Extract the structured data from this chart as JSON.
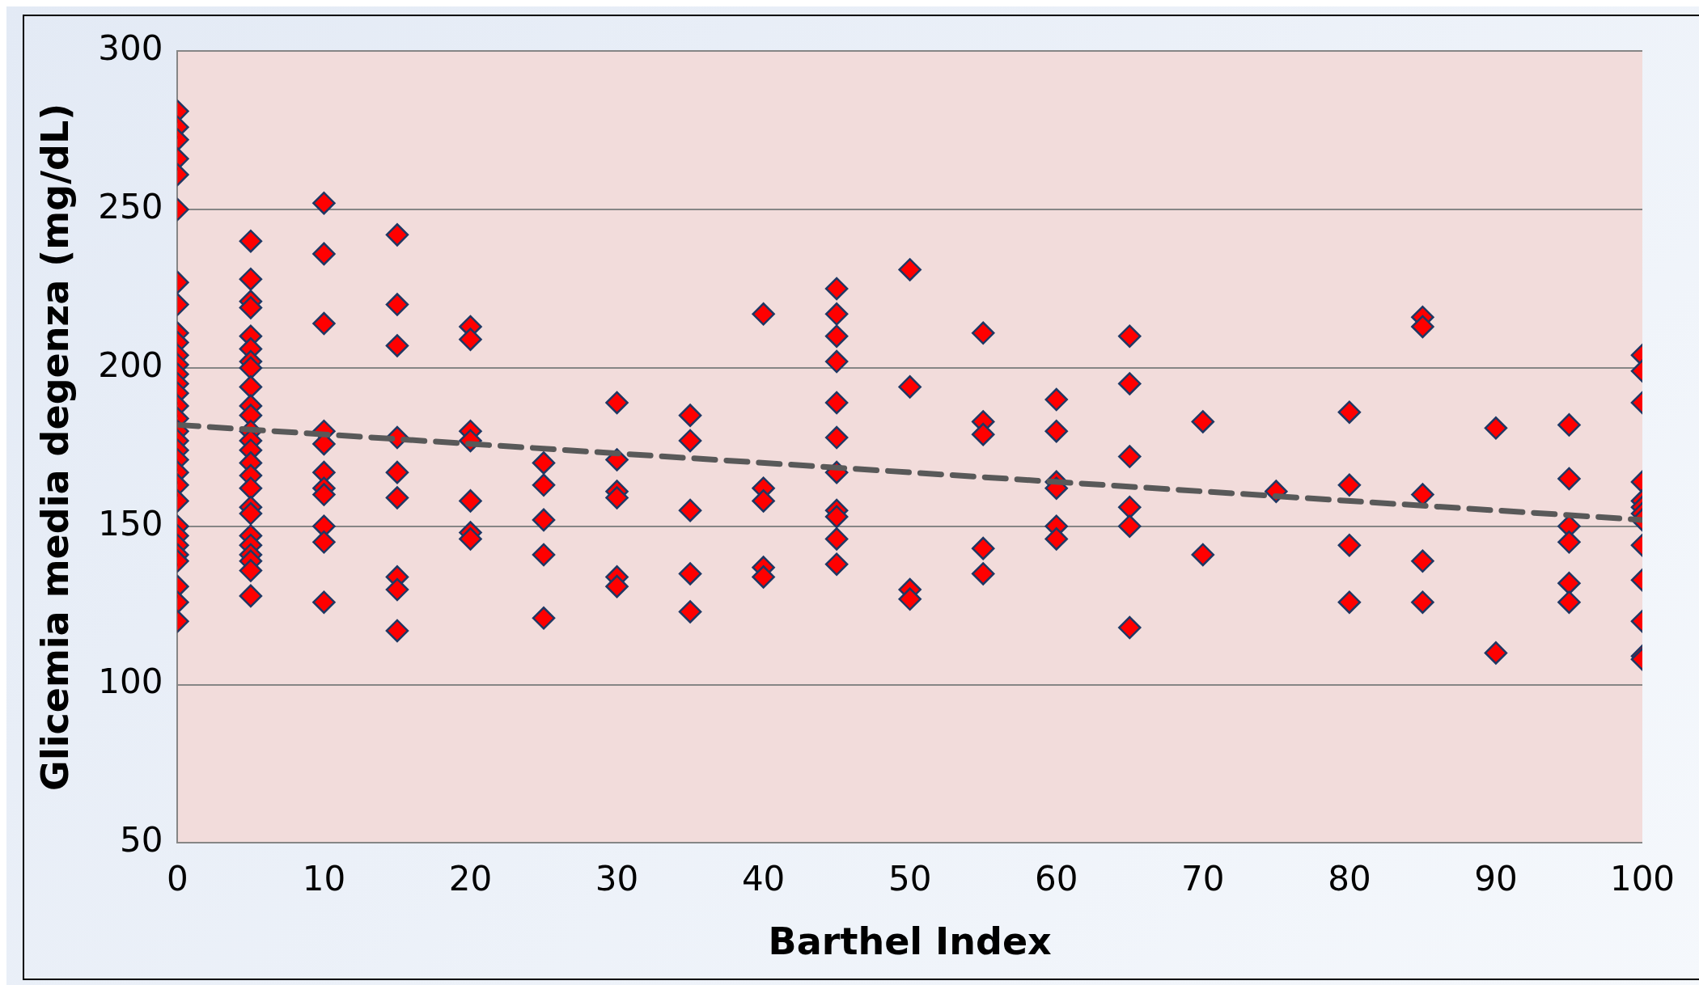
{
  "chart_data": {
    "type": "scatter",
    "xlabel": "Barthel Index",
    "ylabel": "Glicemia media degenza (mg/dL)",
    "xlim": [
      0,
      100
    ],
    "xticks": [
      0,
      10,
      20,
      30,
      40,
      50,
      60,
      70,
      80,
      90,
      100
    ],
    "ylim": [
      50,
      300
    ],
    "yticks": [
      50,
      100,
      150,
      200,
      250,
      300
    ],
    "grid": "y",
    "legend": false,
    "marker": "diamond",
    "series": [
      {
        "color": "#ff0000",
        "x": [
          0,
          0,
          0,
          0,
          0,
          0,
          0,
          0,
          0,
          0,
          0,
          0,
          0,
          0,
          0,
          0,
          0,
          0,
          0,
          0,
          0,
          0,
          0,
          0,
          0,
          0,
          0,
          0,
          0,
          0,
          0,
          0,
          5,
          5,
          5,
          5,
          5,
          5,
          5,
          5,
          5,
          5,
          5,
          5,
          5,
          5,
          5,
          5,
          5,
          5,
          5,
          5,
          5,
          5,
          5,
          5,
          5,
          10,
          10,
          10,
          10,
          10,
          10,
          10,
          10,
          10,
          10,
          10,
          15,
          15,
          15,
          15,
          15,
          15,
          15,
          15,
          15,
          20,
          20,
          20,
          20,
          20,
          20,
          20,
          25,
          25,
          25,
          25,
          25,
          30,
          30,
          30,
          30,
          30,
          30,
          35,
          35,
          35,
          35,
          35,
          40,
          40,
          40,
          40,
          40,
          45,
          45,
          45,
          45,
          45,
          45,
          45,
          45,
          45,
          45,
          45,
          50,
          50,
          50,
          50,
          55,
          55,
          55,
          55,
          55,
          60,
          60,
          60,
          60,
          60,
          60,
          65,
          65,
          65,
          65,
          65,
          65,
          70,
          70,
          75,
          80,
          80,
          80,
          80,
          85,
          85,
          85,
          85,
          85,
          90,
          90,
          95,
          95,
          95,
          95,
          95,
          95,
          100,
          100,
          100,
          100,
          100,
          100,
          100,
          100,
          100,
          100,
          100,
          100,
          100
        ],
        "values": [
          281,
          276,
          272,
          266,
          261,
          250,
          227,
          220,
          211,
          208,
          204,
          201,
          198,
          195,
          192,
          188,
          184,
          180,
          177,
          174,
          171,
          167,
          163,
          158,
          150,
          147,
          144,
          141,
          139,
          131,
          126,
          120,
          240,
          228,
          221,
          219,
          210,
          206,
          202,
          200,
          194,
          188,
          185,
          180,
          177,
          174,
          170,
          166,
          162,
          156,
          154,
          147,
          144,
          141,
          139,
          136,
          128,
          252,
          236,
          214,
          180,
          176,
          167,
          162,
          160,
          150,
          145,
          126,
          242,
          220,
          207,
          178,
          167,
          159,
          134,
          130,
          117,
          213,
          209,
          180,
          177,
          158,
          148,
          146,
          170,
          163,
          152,
          141,
          121,
          189,
          171,
          161,
          159,
          134,
          131,
          185,
          177,
          155,
          135,
          123,
          217,
          162,
          158,
          137,
          134,
          225,
          217,
          210,
          202,
          189,
          178,
          167,
          155,
          153,
          146,
          138,
          231,
          194,
          130,
          127,
          211,
          183,
          179,
          143,
          135,
          190,
          180,
          164,
          162,
          150,
          146,
          210,
          195,
          172,
          156,
          150,
          118,
          183,
          141,
          161,
          186,
          163,
          144,
          126,
          216,
          213,
          160,
          139,
          126,
          181,
          110,
          182,
          165,
          150,
          145,
          132,
          126,
          204,
          199,
          189,
          164,
          158,
          156,
          154,
          152,
          144,
          133,
          120,
          109,
          108
        ]
      },
      {
        "type": "line",
        "color": "#595959",
        "line_style": "dashed",
        "marker": "none",
        "x": [
          0,
          100
        ],
        "values": [
          182,
          152
        ]
      }
    ]
  }
}
